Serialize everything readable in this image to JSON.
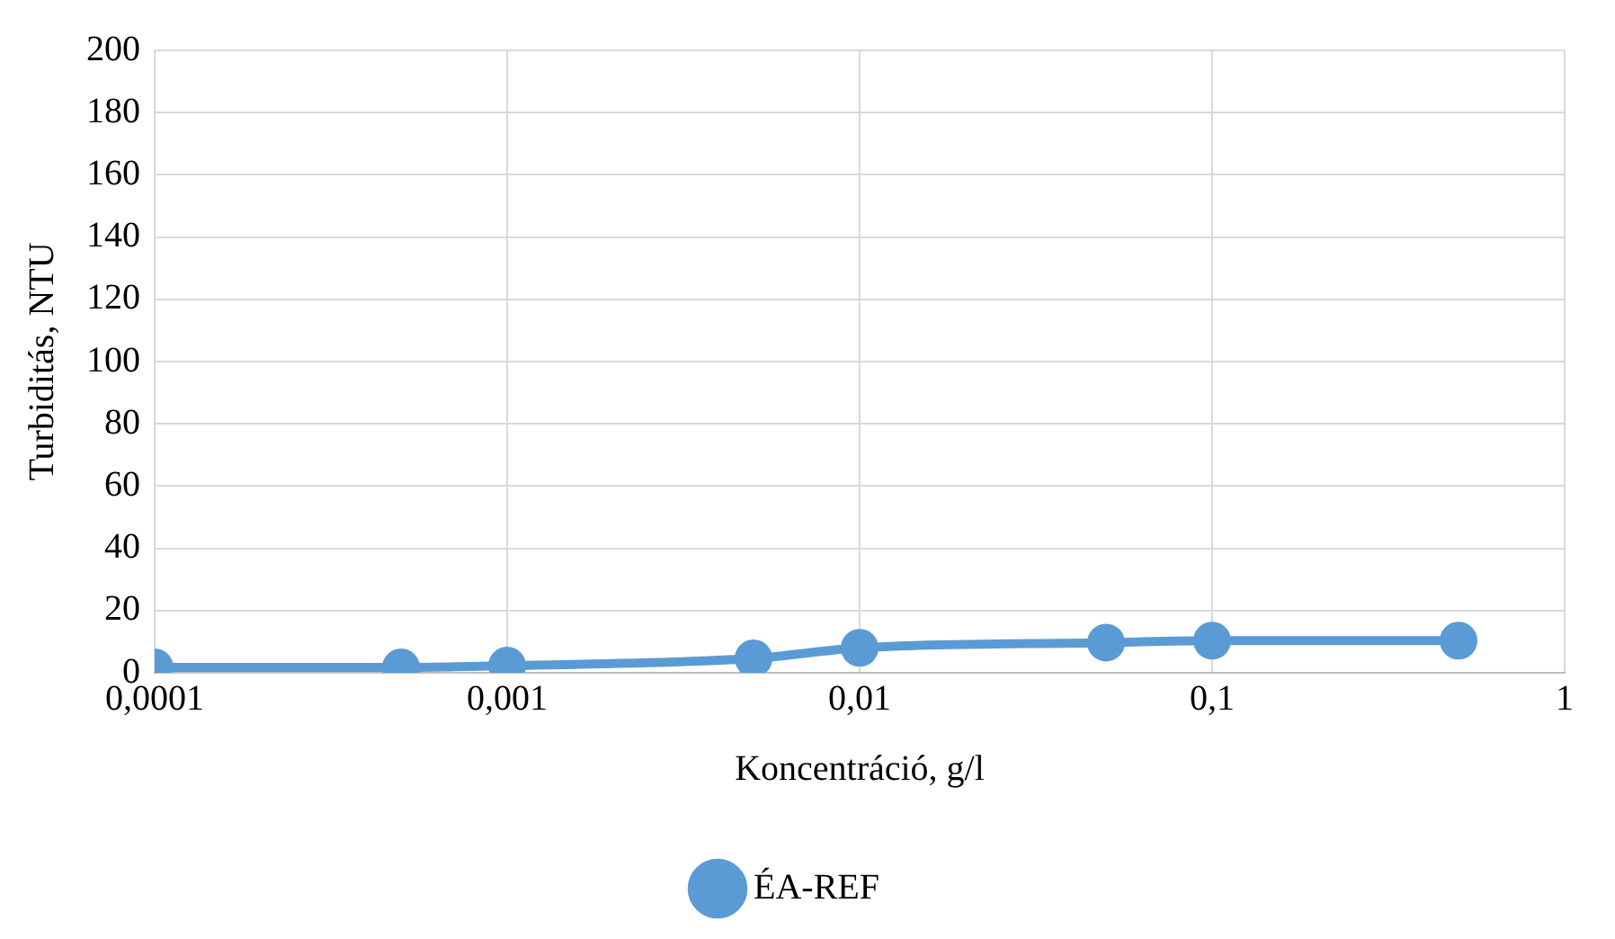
{
  "chart_data": {
    "type": "line",
    "xlabel": "Koncentráció, g/l",
    "ylabel": "Turbiditás, NTU",
    "x": [
      0.0001,
      0.0005,
      0.001,
      0.005,
      0.01,
      0.05,
      0.1,
      0.5
    ],
    "series": [
      {
        "name": "ÉA-REF",
        "color": "#5b9bd5",
        "values": [
          1.7,
          1.7,
          2.3,
          4.6,
          8,
          9.7,
          10.3,
          10.3
        ]
      }
    ],
    "log": "x",
    "xlim": [
      0.0001,
      1
    ],
    "xticks": [
      {
        "value": 0.0001,
        "label": "0,0001"
      },
      {
        "value": 0.001,
        "label": "0,001"
      },
      {
        "value": 0.01,
        "label": "0,01"
      },
      {
        "value": 0.1,
        "label": "0,1"
      },
      1
    ],
    "ylim": [
      0,
      200
    ],
    "yticks": [
      0,
      20,
      40,
      60,
      80,
      100,
      120,
      140,
      160,
      180,
      200
    ],
    "grid": true,
    "legend": "bottom",
    "marker": "circle",
    "line_style": "solid"
  }
}
